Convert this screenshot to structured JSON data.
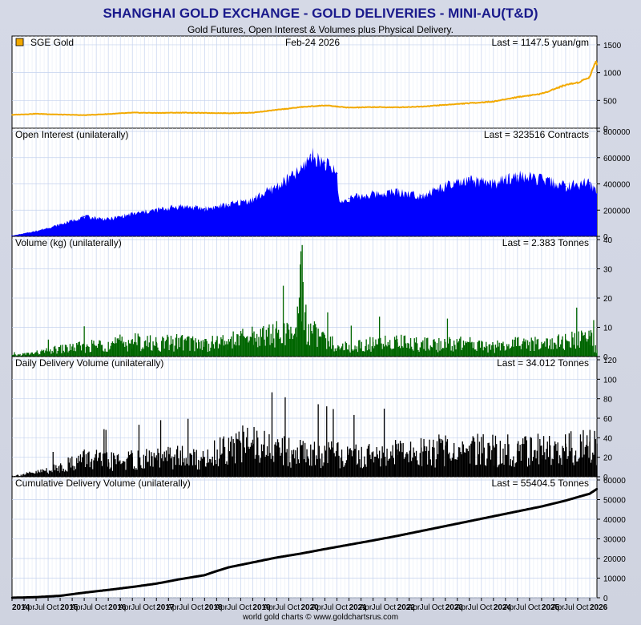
{
  "title": "SHANGHAI GOLD EXCHANGE - GOLD DELIVERIES - MINI-AU(T&D)",
  "subtitle": "Gold Futures, Open Interest & Volumes plus Physical Delivery.",
  "footer": "world gold charts © www.goldchartsrus.com",
  "colors": {
    "background": "#cfd3e0",
    "title": "#1a1a8c",
    "grid": "#c4d2ee",
    "gold": "#f2a900",
    "open_interest": "#0000ff",
    "volume": "#006600",
    "delivery": "#000000",
    "cumulative": "#000000"
  },
  "chart_data": [
    {
      "type": "line",
      "panel": "price",
      "legend": "SGE Gold",
      "date_label": "Feb-24  2026",
      "last_label": "Last = 1147.5 yuan/gm",
      "ylim": [
        0,
        1600
      ],
      "yticks": [
        0,
        500,
        1000,
        1500
      ],
      "x": [
        2014.0,
        2014.5,
        2015.0,
        2015.5,
        2016.0,
        2016.5,
        2017.0,
        2017.5,
        2018.0,
        2018.5,
        2019.0,
        2019.5,
        2020.0,
        2020.5,
        2021.0,
        2021.5,
        2022.0,
        2022.5,
        2023.0,
        2023.5,
        2024.0,
        2024.5,
        2025.0,
        2025.5,
        2025.75,
        2026.0,
        2026.12,
        2026.15
      ],
      "values": [
        240,
        260,
        245,
        235,
        255,
        280,
        275,
        280,
        275,
        270,
        280,
        330,
        380,
        410,
        370,
        380,
        375,
        390,
        420,
        450,
        480,
        560,
        620,
        780,
        820,
        920,
        1200,
        1147.5
      ]
    },
    {
      "type": "area",
      "panel": "open_interest",
      "label": "Open Interest (unilaterally)",
      "last_label": "Last = 323516 Contracts",
      "ylim": [
        0,
        800000
      ],
      "yticks": [
        0,
        200000,
        400000,
        600000,
        800000
      ],
      "x": [
        2014.0,
        2014.5,
        2015.0,
        2015.5,
        2016.0,
        2016.5,
        2017.0,
        2017.5,
        2018.0,
        2018.5,
        2019.0,
        2019.5,
        2020.0,
        2020.2,
        2020.5,
        2020.75,
        2020.8,
        2021.0,
        2021.5,
        2022.0,
        2022.5,
        2023.0,
        2023.5,
        2024.0,
        2024.5,
        2025.0,
        2025.5,
        2026.0,
        2026.15
      ],
      "values": [
        5000,
        40000,
        90000,
        150000,
        130000,
        170000,
        200000,
        230000,
        210000,
        240000,
        280000,
        380000,
        500000,
        620000,
        560000,
        480000,
        250000,
        290000,
        320000,
        340000,
        310000,
        380000,
        420000,
        400000,
        460000,
        430000,
        380000,
        410000,
        323516
      ]
    },
    {
      "type": "bar",
      "panel": "volume",
      "label": "Volume (kg) (unilaterally)",
      "last_label": "Last = 2.383 Tonnes",
      "ylim": [
        0,
        40
      ],
      "yticks": [
        0,
        10,
        20,
        30,
        40
      ],
      "x": [
        2014.0,
        2014.5,
        2015.0,
        2015.5,
        2016.0,
        2016.5,
        2017.0,
        2017.5,
        2018.0,
        2018.5,
        2019.0,
        2019.5,
        2019.9,
        2020.0,
        2020.1,
        2020.5,
        2021.0,
        2021.5,
        2022.0,
        2022.5,
        2023.0,
        2023.5,
        2024.0,
        2024.5,
        2025.0,
        2025.5,
        2026.0,
        2026.15
      ],
      "values": [
        0.5,
        1.5,
        3,
        4,
        5,
        6,
        5,
        6,
        5,
        6,
        8,
        9,
        10,
        36,
        12,
        6,
        4,
        5,
        6,
        5,
        5,
        5,
        4,
        5,
        5,
        6,
        7,
        2.383
      ]
    },
    {
      "type": "bar",
      "panel": "delivery",
      "label": "Daily Delivery Volume (unilaterally)",
      "last_label": "Last = 34.012 Tonnes",
      "ylim": [
        0,
        120
      ],
      "yticks": [
        0,
        20,
        40,
        60,
        80,
        100,
        120
      ],
      "x": [
        2014.0,
        2014.5,
        2015.0,
        2015.5,
        2016.0,
        2016.5,
        2017.0,
        2017.5,
        2018.0,
        2018.5,
        2019.0,
        2019.5,
        2020.0,
        2020.5,
        2021.0,
        2021.5,
        2022.0,
        2022.5,
        2023.0,
        2023.5,
        2024.0,
        2024.5,
        2025.0,
        2025.5,
        2026.0,
        2026.15
      ],
      "values": [
        1,
        5,
        12,
        22,
        18,
        20,
        22,
        24,
        20,
        40,
        38,
        32,
        30,
        28,
        24,
        26,
        28,
        30,
        32,
        32,
        32,
        34,
        32,
        34,
        36,
        34.012
      ]
    },
    {
      "type": "line",
      "panel": "cumulative",
      "label": "Cumulative Delivery Volume (unilaterally)",
      "last_label": "Last = 55404.5 Tonnes",
      "ylim": [
        0,
        60000
      ],
      "yticks": [
        0,
        10000,
        20000,
        30000,
        40000,
        50000,
        60000
      ],
      "x": [
        2014.0,
        2014.5,
        2015.0,
        2015.5,
        2016.0,
        2016.5,
        2017.0,
        2017.5,
        2018.0,
        2018.2,
        2018.5,
        2019.0,
        2019.5,
        2020.0,
        2020.5,
        2021.0,
        2021.5,
        2022.0,
        2022.5,
        2023.0,
        2023.5,
        2024.0,
        2024.5,
        2025.0,
        2025.5,
        2026.0,
        2026.15
      ],
      "values": [
        0,
        300,
        1000,
        2600,
        4000,
        5500,
        7200,
        9500,
        11500,
        13200,
        15500,
        18000,
        20500,
        22500,
        24800,
        27000,
        29200,
        31500,
        34000,
        36500,
        39000,
        41500,
        44000,
        46500,
        49500,
        53000,
        55404.5
      ]
    }
  ],
  "x_axis": {
    "start": 2014.0,
    "end": 2026.15,
    "labels": [
      {
        "t": 2014.0,
        "text": "2014"
      },
      {
        "t": 2014.25,
        "text": "Apr"
      },
      {
        "t": 2014.5,
        "text": "Jul"
      },
      {
        "t": 2014.75,
        "text": "Oct"
      },
      {
        "t": 2015.0,
        "text": "2015"
      },
      {
        "t": 2015.25,
        "text": "Apr"
      },
      {
        "t": 2015.5,
        "text": "Jul"
      },
      {
        "t": 2015.75,
        "text": "Oct"
      },
      {
        "t": 2016.0,
        "text": "2016"
      },
      {
        "t": 2016.25,
        "text": "Apr"
      },
      {
        "t": 2016.5,
        "text": "Jul"
      },
      {
        "t": 2016.75,
        "text": "Oct"
      },
      {
        "t": 2017.0,
        "text": "2017"
      },
      {
        "t": 2017.25,
        "text": "Apr"
      },
      {
        "t": 2017.5,
        "text": "Jul"
      },
      {
        "t": 2017.75,
        "text": "Oct"
      },
      {
        "t": 2018.0,
        "text": "2018"
      },
      {
        "t": 2018.25,
        "text": "Apr"
      },
      {
        "t": 2018.5,
        "text": "Jul"
      },
      {
        "t": 2018.75,
        "text": "Oct"
      },
      {
        "t": 2019.0,
        "text": "2019"
      },
      {
        "t": 2019.25,
        "text": "Apr"
      },
      {
        "t": 2019.5,
        "text": "Jul"
      },
      {
        "t": 2019.75,
        "text": "Oct"
      },
      {
        "t": 2020.0,
        "text": "2020"
      },
      {
        "t": 2020.25,
        "text": "Apr"
      },
      {
        "t": 2020.5,
        "text": "Jul"
      },
      {
        "t": 2020.75,
        "text": "Oct"
      },
      {
        "t": 2021.0,
        "text": "2021"
      },
      {
        "t": 2021.25,
        "text": "Apr"
      },
      {
        "t": 2021.5,
        "text": "Jul"
      },
      {
        "t": 2021.75,
        "text": "Oct"
      },
      {
        "t": 2022.0,
        "text": "2022"
      },
      {
        "t": 2022.25,
        "text": "Apr"
      },
      {
        "t": 2022.5,
        "text": "Jul"
      },
      {
        "t": 2022.75,
        "text": "Oct"
      },
      {
        "t": 2023.0,
        "text": "2023"
      },
      {
        "t": 2023.25,
        "text": "Apr"
      },
      {
        "t": 2023.5,
        "text": "Jul"
      },
      {
        "t": 2023.75,
        "text": "Oct"
      },
      {
        "t": 2024.0,
        "text": "2024"
      },
      {
        "t": 2024.25,
        "text": "Apr"
      },
      {
        "t": 2024.5,
        "text": "Jul"
      },
      {
        "t": 2024.75,
        "text": "Oct"
      },
      {
        "t": 2025.0,
        "text": "2025"
      },
      {
        "t": 2025.25,
        "text": "Apr"
      },
      {
        "t": 2025.5,
        "text": "Jul"
      },
      {
        "t": 2025.75,
        "text": "Oct"
      },
      {
        "t": 2026.0,
        "text": "2026"
      }
    ]
  }
}
